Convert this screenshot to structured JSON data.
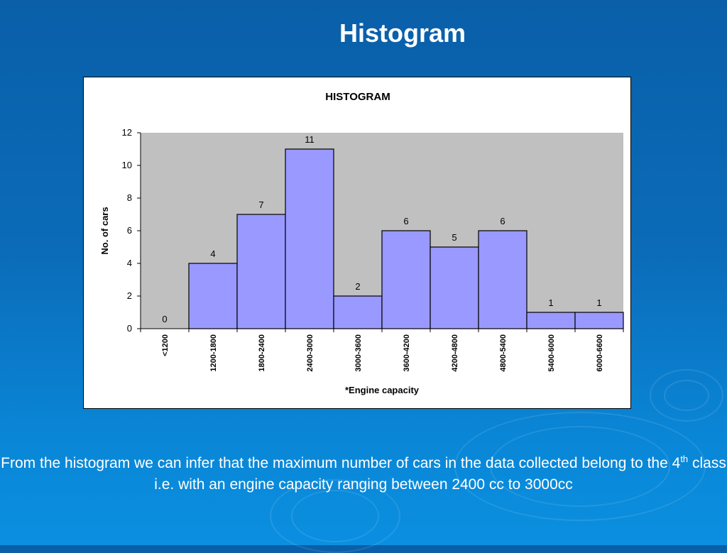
{
  "slide": {
    "title": "Histogram",
    "caption_part1": "From the histogram we can infer that the maximum number of cars in the data  collected belong to the 4",
    "caption_sup": "th",
    "caption_part2": " class i.e. with an engine capacity ranging between 2400 cc to 3000cc"
  },
  "colors": {
    "bar_fill": "#9999ff",
    "plot_background": "#c0c0c0",
    "slide_background": "#0b6bb8"
  },
  "chart_data": {
    "type": "bar",
    "title": "HISTOGRAM",
    "xlabel": "*Engine capacity",
    "ylabel": "No. of cars",
    "categories": [
      "<1200",
      "1200-1800",
      "1800-2400",
      "2400-3000",
      "3000-3600",
      "3600-4200",
      "4200-4800",
      "4800-5400",
      "5400-6000",
      "6000-6600"
    ],
    "values": [
      0,
      4,
      7,
      11,
      2,
      6,
      5,
      6,
      1,
      1
    ],
    "data_labels": [
      "0",
      "4",
      "7",
      "11",
      "2",
      "6",
      "5",
      "6",
      "1",
      "1"
    ],
    "ylim": [
      0,
      12
    ],
    "yticks": [
      "0",
      "2",
      "4",
      "6",
      "8",
      "10",
      "12"
    ],
    "grid": false,
    "legend": "none"
  }
}
